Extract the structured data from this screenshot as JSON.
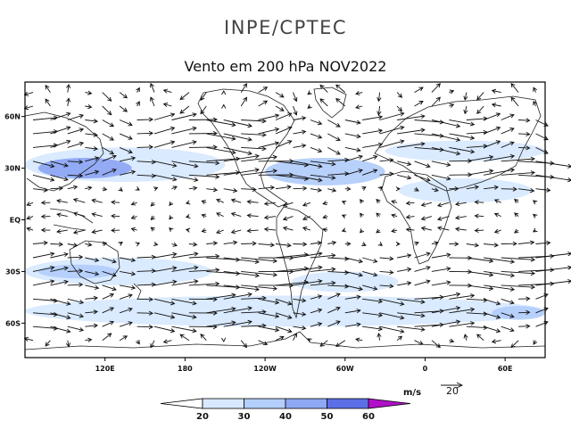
{
  "header": {
    "org": "INPE/CPTEC",
    "title": "Vento em 200 hPa NOV2022"
  },
  "chart_data": {
    "type": "heatmap",
    "title": "Vento em 200 hPa NOV2022",
    "variable": "wind speed and direction at 200 hPa",
    "units": "m/s",
    "reference_vector": {
      "value": 20,
      "label": "20"
    },
    "lon_ticks": [
      {
        "lon": 120,
        "label": "120E"
      },
      {
        "lon": 180,
        "label": "180"
      },
      {
        "lon": 240,
        "label": "120W"
      },
      {
        "lon": 300,
        "label": "60W"
      },
      {
        "lon": 360,
        "label": "0"
      },
      {
        "lon": 420,
        "label": "60E"
      }
    ],
    "lat_ticks": [
      {
        "lat": 60,
        "label": "60N"
      },
      {
        "lat": 30,
        "label": "30N"
      },
      {
        "lat": 0,
        "label": "EQ"
      },
      {
        "lat": -30,
        "label": "30S"
      },
      {
        "lat": -60,
        "label": "60S"
      }
    ],
    "lon_range": [
      60,
      450
    ],
    "lat_range": [
      -80,
      80
    ],
    "colorbar": {
      "unit_label": "m/s",
      "levels": [
        20,
        30,
        40,
        50,
        60
      ],
      "colors": [
        "#ffffff",
        "#d8e9ff",
        "#b4cffb",
        "#8fa8f4",
        "#5d6fe6",
        "#b010c8"
      ]
    },
    "jet_regions": [
      {
        "lon": [
          60,
          210
        ],
        "lat": [
          22,
          42
        ],
        "band": 1
      },
      {
        "lon": [
          70,
          140
        ],
        "lat": [
          24,
          36
        ],
        "band": 3
      },
      {
        "lon": [
          240,
          330
        ],
        "lat": [
          20,
          36
        ],
        "band": 2
      },
      {
        "lon": [
          330,
          450
        ],
        "lat": [
          34,
          46
        ],
        "band": 1
      },
      {
        "lon": [
          340,
          440
        ],
        "lat": [
          10,
          24
        ],
        "band": 1
      },
      {
        "lon": [
          60,
          200
        ],
        "lat": [
          -38,
          -22
        ],
        "band": 1
      },
      {
        "lon": [
          70,
          130
        ],
        "lat": [
          -34,
          -26
        ],
        "band": 2
      },
      {
        "lon": [
          60,
          450
        ],
        "lat": [
          -62,
          -44
        ],
        "band": 1
      },
      {
        "lon": [
          410,
          450
        ],
        "lat": [
          -58,
          -50
        ],
        "band": 2
      },
      {
        "lon": [
          260,
          340
        ],
        "lat": [
          -42,
          -30
        ],
        "band": 1
      }
    ]
  }
}
